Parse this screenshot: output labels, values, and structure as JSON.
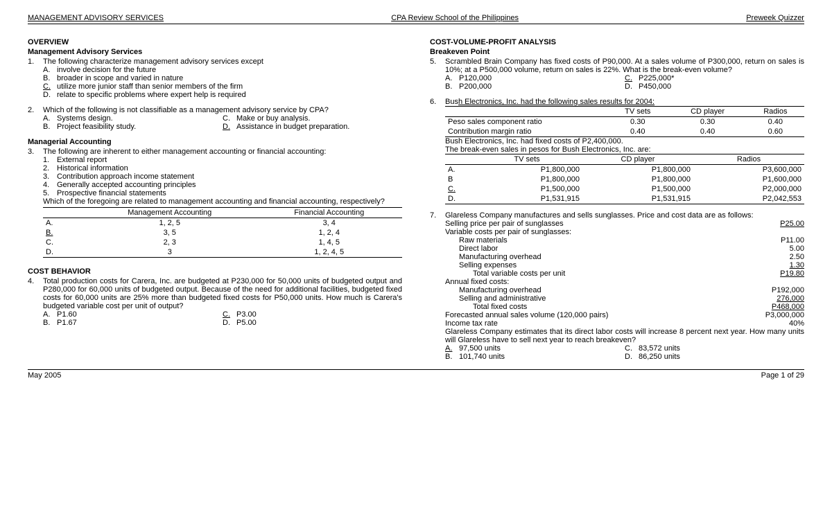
{
  "header": {
    "left": "MANAGEMENT ADVISORY SERVICES",
    "center": "CPA Review School of the Philippines",
    "right": "Preweek Quizzer"
  },
  "footer": {
    "left": "May 2005",
    "right": "Page 1 of 29"
  },
  "left": {
    "overview_title": "OVERVIEW",
    "mas_title": "Management Advisory Services",
    "q1": {
      "num": "1.",
      "text": "The following characterize management advisory services except",
      "opts": {
        "A": "involve decision for the future",
        "B": "broader in scope and varied in nature",
        "C": "utilize more junior staff than senior members of the firm",
        "D": "relate to specific problems where expert help is required"
      },
      "correct": "C"
    },
    "q2": {
      "num": "2.",
      "text": "Which of the following is not classifiable as a management advisory service by CPA?",
      "opts": {
        "A": "Systems design.",
        "B": "Project feasibility study.",
        "C": "Make or buy analysis.",
        "D": "Assistance in budget preparation."
      },
      "correct": "D"
    },
    "ma_title": "Managerial Accounting",
    "q3": {
      "num": "3.",
      "text": "The following are inherent to either management accounting or financial accounting:",
      "items": {
        "1": "External report",
        "2": "Historical information",
        "3": "Contribution approach income statement",
        "4": "Generally accepted accounting principles",
        "5": "Prospective financial statements"
      },
      "q": "Which of the foregoing are related to management accounting and financial accounting, respectively?",
      "table": {
        "h1": "Management Accounting",
        "h2": "Financial Accounting",
        "rows": [
          {
            "k": "A.",
            "a": "1, 2, 5",
            "b": "3, 4"
          },
          {
            "k": "B.",
            "a": "3, 5",
            "b": "1, 2, 4"
          },
          {
            "k": "C.",
            "a": "2, 3",
            "b": "1, 4, 5"
          },
          {
            "k": "D.",
            "a": "3",
            "b": "1, 2, 4, 5"
          }
        ],
        "correct_row": 1
      }
    },
    "cb_title": "COST BEHAVIOR",
    "q4": {
      "num": "4.",
      "text": "Total production costs for Carera, Inc. are budgeted at P230,000 for 50,000 units of budgeted output and P280,000 for 60,000 units of budgeted output.  Because of the need for additional facilities, budgeted fixed costs for 60,000 units are 25% more than budgeted fixed costs for P50,000 units.  How much is Carera's budgeted variable cost per unit of output?",
      "opts": {
        "A": "P1.60",
        "B": "P1.67",
        "C": "P3.00",
        "D": "P5.00"
      },
      "correct": "C"
    }
  },
  "right": {
    "cvp_title": "COST-VOLUME-PROFIT ANALYSIS",
    "be_title": "Breakeven Point",
    "q5": {
      "num": "5.",
      "text": "Scrambled Brain Company has fixed costs of P90,000.  At a sales volume of P300,000, return on sales is 10%; at a P500,000 volume, return on sales is 22%.  What is the break-even volume?",
      "opts": {
        "A": "P120,000",
        "B": "P200,000",
        "C": "P225,000*",
        "D": "P450,000"
      },
      "correct": "C"
    },
    "q6": {
      "num": "6.",
      "intro": "Bush Electronics, Inc. had the following sales results for 2004:",
      "t1": {
        "h": [
          "",
          "TV sets",
          "CD player",
          "Radios"
        ],
        "r1": [
          "Peso sales component ratio",
          "0.30",
          "0.30",
          "0.40"
        ],
        "r2": [
          "Contribution margin ratio",
          "0.40",
          "0.40",
          "0.60"
        ]
      },
      "mid1": "Bush Electronics, Inc. had fixed costs of P2,400,000.",
      "mid2": "The break-even sales in pesos for Bush Electronics, Inc. are:",
      "t2": {
        "h": [
          "",
          "TV sets",
          "CD player",
          "Radios"
        ],
        "rows": [
          {
            "k": "A.",
            "a": "P1,800,000",
            "b": "P1,800,000",
            "c": "P3,600,000"
          },
          {
            "k": "B",
            "a": "P1,800,000",
            "b": "P1,800,000",
            "c": "P1,600,000"
          },
          {
            "k": "C.",
            "a": "P1,500,000",
            "b": "P1,500,000",
            "c": "P2,000,000"
          },
          {
            "k": "D.",
            "a": "P1,531,915",
            "b": "P1,531,915",
            "c": "P2,042,553"
          }
        ],
        "correct_row": 2
      }
    },
    "q7": {
      "num": "7.",
      "intro": "Glareless Company manufactures and sells sunglasses.  Price and cost data are as follows:",
      "items": [
        {
          "label": "Selling price per pair of sunglasses",
          "val": "P25.00",
          "u": true,
          "indent": 0
        },
        {
          "label": "Variable costs per pair of sunglasses:",
          "val": "",
          "indent": 0
        },
        {
          "label": "Raw materials",
          "val": "P11.00",
          "indent": 1
        },
        {
          "label": "Direct labor",
          "val": "5.00",
          "indent": 1
        },
        {
          "label": "Manufacturing overhead",
          "val": "2.50",
          "indent": 1
        },
        {
          "label": "Selling expenses",
          "val": "1.30",
          "u": true,
          "indent": 1
        },
        {
          "label": "Total variable costs per unit",
          "val": "P19.80",
          "u": true,
          "indent": 2
        },
        {
          "label": "Annual fixed costs:",
          "val": "",
          "indent": 0
        },
        {
          "label": "Manufacturing overhead",
          "val": "P192,000",
          "indent": 1
        },
        {
          "label": "Selling and administrative",
          "val": "276,000",
          "u": true,
          "indent": 1
        },
        {
          "label": "Total fixed costs",
          "val": "P468,000",
          "u": true,
          "indent": 2
        },
        {
          "label": "Forecasted annual sales volume (120,000 pairs)",
          "val": "P3,000,000",
          "indent": 0
        },
        {
          "label": "Income tax rate",
          "val": "40%",
          "indent": 0
        }
      ],
      "q": "Glareless Company estimates that its direct labor costs will increase 8 percent next year.  How many units will Glareless have to sell next year to reach breakeven?",
      "opts": {
        "A": "97,500 units",
        "B": "101,740 units",
        "C": "83,572 units",
        "D": "86,250 units"
      },
      "correct": "A"
    }
  }
}
